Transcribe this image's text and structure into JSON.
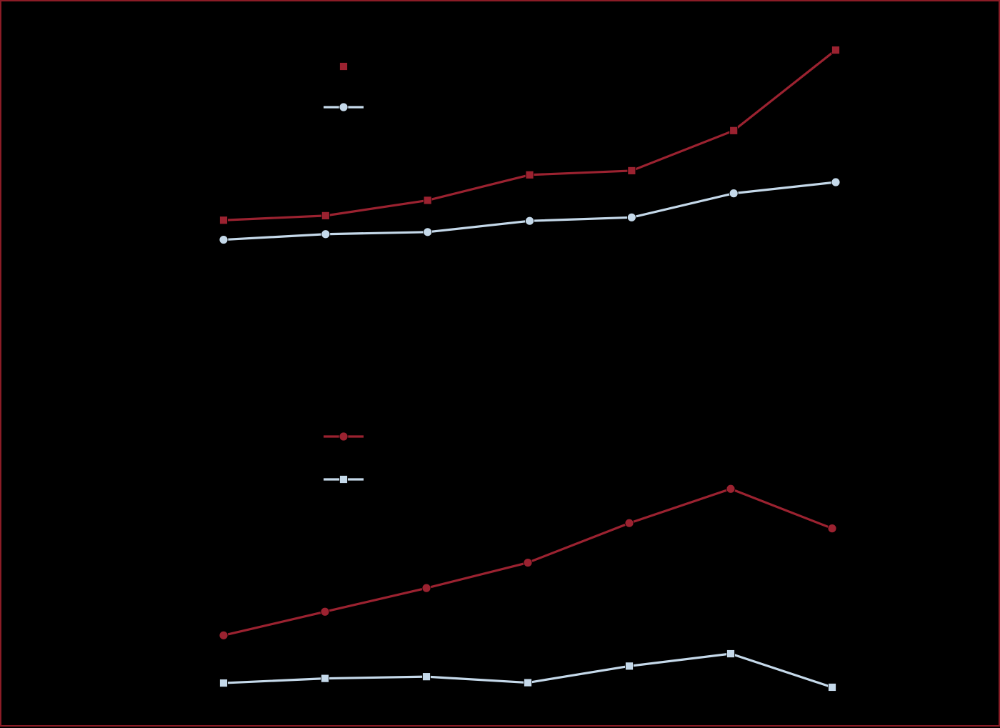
{
  "colors": {
    "background": "#000000",
    "frame": "#8b1c26",
    "red_series": "#9b2230",
    "light_series": "#c5d9ea"
  },
  "chart_data": [
    {
      "type": "line",
      "panel": "top",
      "title": "",
      "xlabel": "",
      "ylabel": "",
      "x": [
        1,
        2,
        3,
        4,
        5,
        6,
        7
      ],
      "grid": false,
      "legend_position": "top-left",
      "series": [
        {
          "name": "",
          "color": "#9b2230",
          "marker": "square",
          "values": [
            3.95,
            4.08,
            4.52,
            5.25,
            5.37,
            6.52,
            8.83
          ]
        },
        {
          "name": "",
          "color": "#c5d9ea",
          "marker": "circle",
          "values": [
            3.39,
            3.55,
            3.61,
            3.93,
            4.03,
            4.72,
            5.04
          ]
        }
      ],
      "ylim": [
        0,
        9.2
      ]
    },
    {
      "type": "line",
      "panel": "bottom",
      "title": "",
      "xlabel": "",
      "ylabel": "",
      "x": [
        1,
        2,
        3,
        4,
        5,
        6,
        7
      ],
      "grid": false,
      "legend_position": "top-left",
      "series": [
        {
          "name": "",
          "color": "#9b2230",
          "marker": "circle",
          "values": [
            2.28,
            2.95,
            3.62,
            4.34,
            5.46,
            6.43,
            5.31
          ]
        },
        {
          "name": "",
          "color": "#c5d9ea",
          "marker": "square",
          "values": [
            0.93,
            1.06,
            1.11,
            0.94,
            1.41,
            1.76,
            0.81
          ]
        }
      ],
      "ylim": [
        0,
        8.5
      ]
    }
  ]
}
